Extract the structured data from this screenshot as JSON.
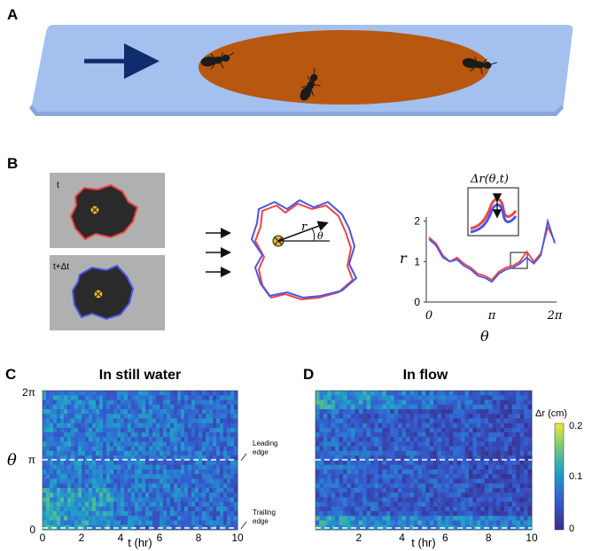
{
  "panels": {
    "a": {
      "letter": "A"
    },
    "b": {
      "letter": "B",
      "label_t": "t",
      "label_t_dt": "t+Δt",
      "inset_label": "Δr(θ,t)",
      "contour_r": "r",
      "contour_theta": "θ",
      "plot_ylabel": "r",
      "plot_xlabel": "θ",
      "plot_yticks": [
        "0",
        "1",
        "2"
      ],
      "plot_xticks": [
        "0",
        "π",
        "2π"
      ]
    },
    "c": {
      "letter": "C",
      "title": "In still water",
      "ylabel": "θ",
      "yticks": [
        "0",
        "π",
        "2π"
      ],
      "xticks": [
        "0",
        "2",
        "4",
        "6",
        "8",
        "10"
      ],
      "xlabel": "t (hr)",
      "leading_edge": [
        "Leading",
        "edge"
      ],
      "trailing_edge": [
        "Trailing",
        "edge"
      ]
    },
    "d": {
      "letter": "D",
      "title": "In flow",
      "xticks": [
        "2",
        "4",
        "6",
        "8",
        "10"
      ],
      "xlabel": "t (hr)"
    }
  },
  "colorbar": {
    "label": "Δr (cm)",
    "ticks": [
      "0",
      "0.1",
      "0.2"
    ]
  },
  "colors": {
    "water": "#a4c0ef",
    "raft": "#b8570f",
    "arrow": "#0f2c6e",
    "red_contour": "#ee4444",
    "blue_contour": "#4a55e8",
    "heat_low": "#3a2c8a",
    "heat_mid": "#2e7fc7",
    "heat_high": "#e8e038"
  },
  "chart_data": [
    {
      "type": "line",
      "x_ticks": [
        "0",
        "π",
        "2π"
      ],
      "y_ticks": [
        "0",
        "1",
        "2"
      ],
      "ylim": [
        0,
        2.1
      ],
      "series": [
        {
          "values": [
            1.6,
            1.45,
            1.15,
            1.0,
            1.1,
            0.95,
            0.85,
            0.7,
            0.65,
            0.55,
            0.75,
            0.85,
            0.9,
            1.0,
            1.25,
            1.0,
            1.2,
            1.85,
            1.5
          ]
        },
        {
          "values": [
            1.55,
            1.4,
            1.1,
            1.0,
            1.05,
            0.9,
            0.8,
            0.65,
            0.6,
            0.5,
            0.7,
            0.8,
            0.85,
            0.95,
            1.1,
            0.95,
            1.15,
            2.0,
            1.45
          ]
        }
      ]
    },
    {
      "type": "heatmap",
      "x_ticks": [
        "0",
        "2",
        "4",
        "6",
        "8",
        "10"
      ],
      "y_ticks": [
        "0",
        "π",
        "2π"
      ],
      "xlabel": "t (hr)",
      "ylabel": "θ"
    },
    {
      "type": "heatmap",
      "x_ticks": [
        "2",
        "4",
        "6",
        "8",
        "10"
      ],
      "xlabel": "t (hr)",
      "colorbar_range": [
        0,
        0.2
      ]
    }
  ]
}
